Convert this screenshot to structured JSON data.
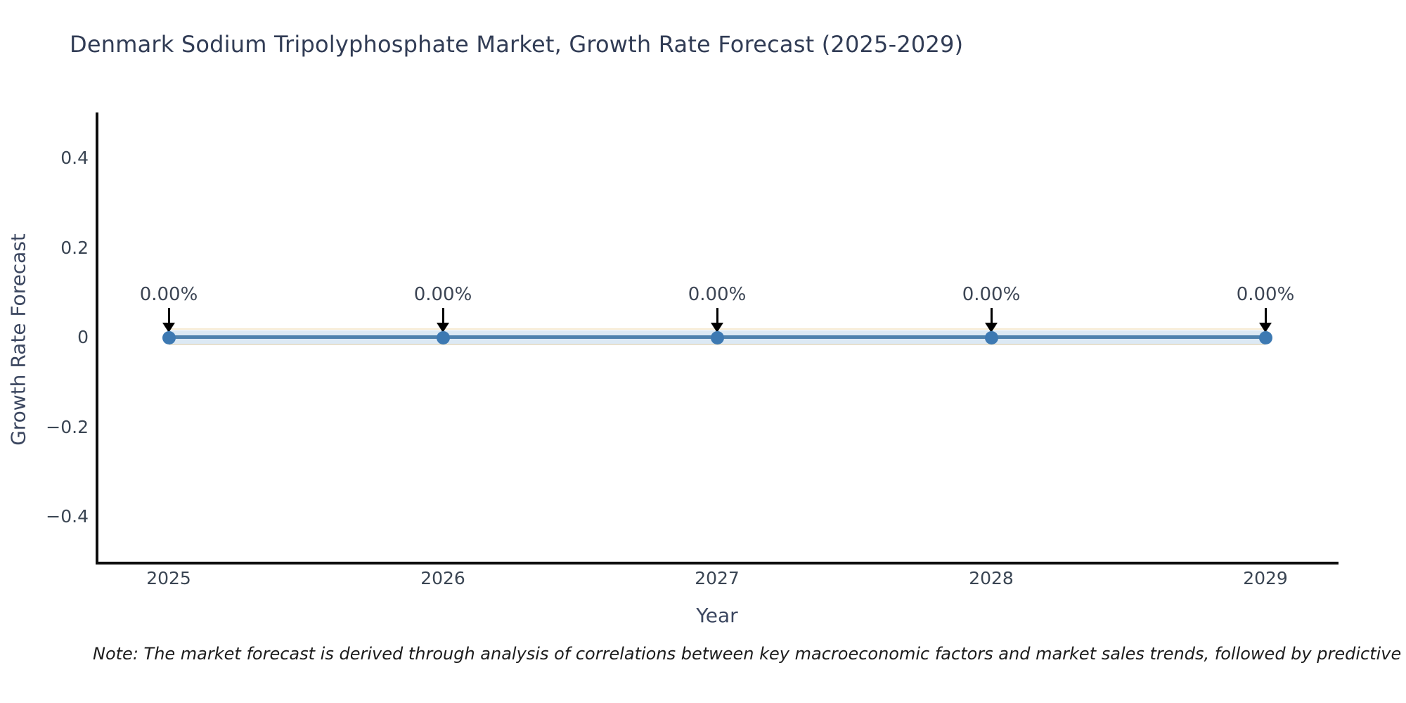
{
  "note": "Note: The market forecast is derived through analysis of correlations between key macroeconomic factors and market sales trends, followed by predictive modeling to project future sales.",
  "chart_data": {
    "type": "line",
    "title": "Denmark Sodium Tripolyphosphate Market, Growth Rate Forecast (2025-2029)",
    "xlabel": "Year",
    "ylabel": "Growth Rate Forecast",
    "x": [
      2025,
      2026,
      2027,
      2028,
      2029
    ],
    "series": [
      {
        "name": "Growth Rate Forecast",
        "values": [
          0,
          0,
          0,
          0,
          0
        ]
      }
    ],
    "point_labels": [
      "0.00%",
      "0.00%",
      "0.00%",
      "0.00%",
      "0.00%"
    ],
    "xtick_labels": [
      "2025",
      "2026",
      "2027",
      "2028",
      "2029"
    ],
    "ytick_values": [
      0.4,
      0.2,
      0,
      -0.2,
      -0.4
    ],
    "ytick_labels": [
      "0.4",
      "0.2",
      "0",
      "−0.2",
      "−0.4"
    ],
    "ylim": [
      -0.5,
      0.5
    ],
    "xlim": [
      2024.73,
      2029.26
    ],
    "grid": false,
    "legend_position": "none",
    "annotation_style": "down-arrow-to-point",
    "colors": {
      "line": "#4d81ad",
      "marker": "#3d79b2",
      "band": "#dce9f4",
      "band_edge": "#eed9ae",
      "arrow": "#000000",
      "axis_line": "#0d0d0d",
      "title_text": "#313c55",
      "axis_title_text": "#3c4760",
      "tick_text": "#3a4553",
      "annotation_text": "#3c4554",
      "note_text": "#1c1c1c"
    }
  }
}
